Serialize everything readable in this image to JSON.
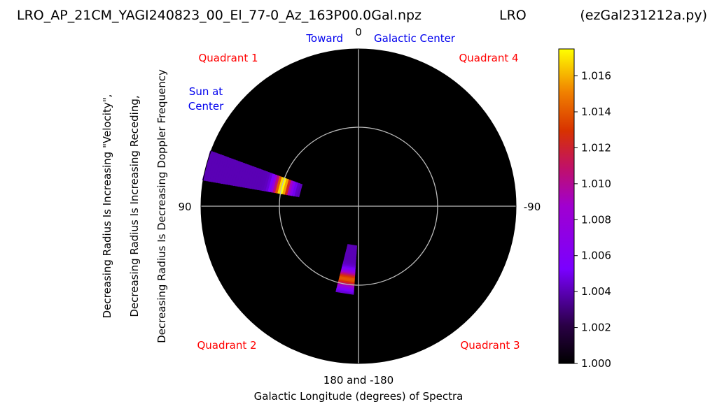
{
  "header": {
    "filename": "LRO_AP_21CM_YAGI240823_00_El_77-0_Az_163P00.0Gal.npz",
    "site": "LRO",
    "script": "(ezGal231212a.py)"
  },
  "chart_data": {
    "type": "heatmap",
    "projection": "polar",
    "angle_labels": {
      "top": "0",
      "left": "90",
      "right": "-90",
      "bottom": "180 and -180"
    },
    "annotations": {
      "toward": "Toward",
      "galactic_center": "Galactic Center",
      "sun_at": "Sun at",
      "center": "Center",
      "quadrant_1": "Quadrant 1",
      "quadrant_2": "Quadrant 2",
      "quadrant_3": "Quadrant 3",
      "quadrant_4": "Quadrant 4"
    },
    "xlabel": "Galactic Longitude (degrees) of Spectra",
    "ylabel_lines": [
      "Decreasing Radius Is Increasing \"Velocity\",",
      "Decreasing Radius Is Increasing Receding,",
      "Decreasing Radius Is Decreasing Doppler Frequency"
    ],
    "colorbar": {
      "min": 1.0,
      "max": 1.0175,
      "ticks": [
        "1.016",
        "1.014",
        "1.012",
        "1.010",
        "1.008",
        "1.006",
        "1.004",
        "1.002",
        "1.000"
      ],
      "colormap": "gnuplot"
    },
    "inner_circle_radius_fraction": 0.5,
    "series": [
      {
        "longitude_deg": 75,
        "radius_fraction": [
          0.38,
          1.0
        ],
        "peak_value": 1.0175,
        "peak_radius_fraction": 0.5,
        "base_value": 1.004
      },
      {
        "longitude_deg": 171,
        "radius_fraction": [
          0.25,
          0.56
        ],
        "peak_value": 1.014,
        "peak_radius_fraction": 0.47,
        "base_value": 1.004
      }
    ],
    "colors": {
      "background": "#000000",
      "grid": "#bbbbbb",
      "quadrant_text": "#ff0000",
      "annotation_text": "#0000ee"
    }
  }
}
